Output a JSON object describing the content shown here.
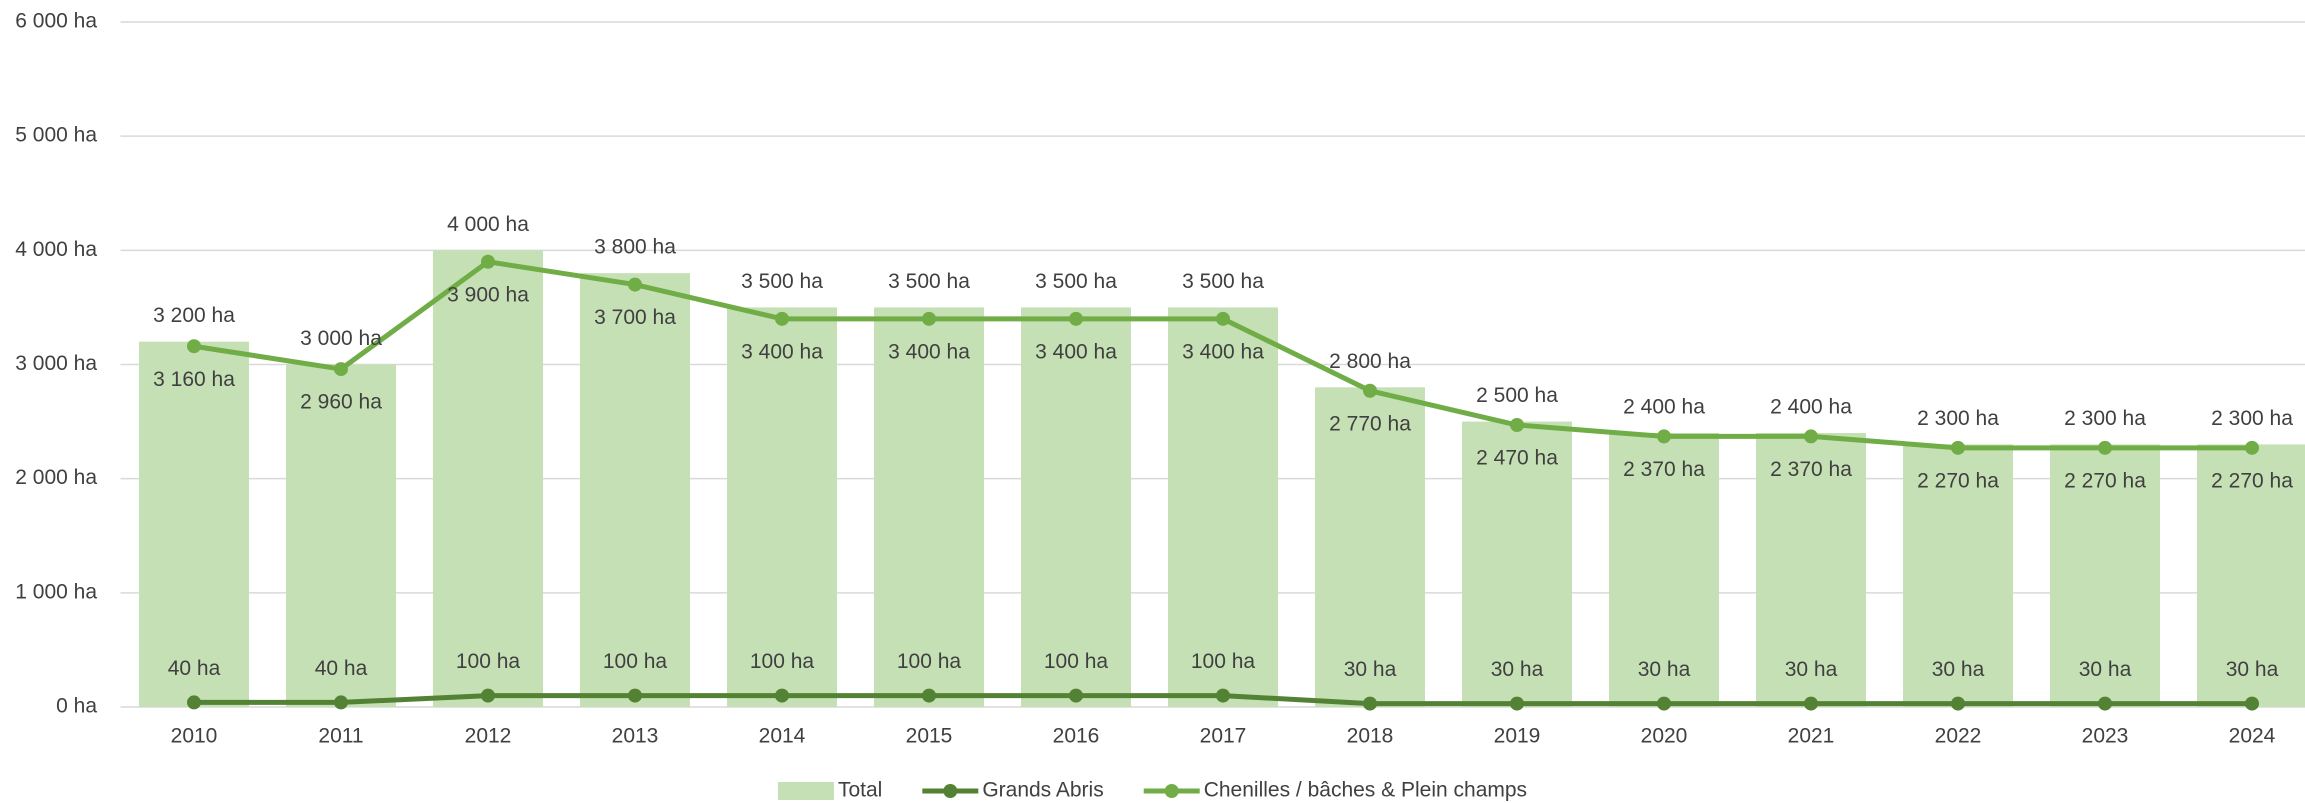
{
  "chart_data": {
    "type": "bar",
    "categories": [
      "2010",
      "2011",
      "2012",
      "2013",
      "2014",
      "2015",
      "2016",
      "2017",
      "2018",
      "2019",
      "2020",
      "2021",
      "2022",
      "2023",
      "2024"
    ],
    "series": [
      {
        "name": "Total",
        "type": "bar",
        "color": "#c5e0b4",
        "values": [
          3200,
          3000,
          4000,
          3800,
          3500,
          3500,
          3500,
          3500,
          2800,
          2500,
          2400,
          2400,
          2300,
          2300,
          2300
        ],
        "value_labels": [
          "3 200 ha",
          "3 000 ha",
          "4 000 ha",
          "3 800 ha",
          "3 500 ha",
          "3 500 ha",
          "3 500 ha",
          "3 500 ha",
          "2 800 ha",
          "2 500 ha",
          "2 400 ha",
          "2 400 ha",
          "2 300 ha",
          "2 300 ha",
          "2 300 ha"
        ]
      },
      {
        "name": "Grands Abris",
        "type": "line",
        "color": "#548235",
        "values": [
          40,
          40,
          100,
          100,
          100,
          100,
          100,
          100,
          30,
          30,
          30,
          30,
          30,
          30,
          30
        ],
        "value_labels": [
          "40 ha",
          "40 ha",
          "100 ha",
          "100 ha",
          "100 ha",
          "100 ha",
          "100 ha",
          "100 ha",
          "30 ha",
          "30 ha",
          "30 ha",
          "30 ha",
          "30 ha",
          "30 ha",
          "30 ha"
        ]
      },
      {
        "name": "Chenilles / bâches & Plein champs",
        "type": "line",
        "color": "#70ad47",
        "values": [
          3160,
          2960,
          3900,
          3700,
          3400,
          3400,
          3400,
          3400,
          2770,
          2470,
          2370,
          2370,
          2270,
          2270,
          2270
        ],
        "value_labels": [
          "3 160 ha",
          "2 960 ha",
          "3 900 ha",
          "3 700 ha",
          "3 400 ha",
          "3 400 ha",
          "3 400 ha",
          "3 400 ha",
          "2 770 ha",
          "2 470 ha",
          "2 370 ha",
          "2 370 ha",
          "2 270 ha",
          "2 270 ha",
          "2 270 ha"
        ]
      }
    ],
    "ylim": [
      0,
      6000
    ],
    "yticks": [
      {
        "value": 0,
        "label": "0 ha"
      },
      {
        "value": 1000,
        "label": "1 000 ha"
      },
      {
        "value": 2000,
        "label": "2 000 ha"
      },
      {
        "value": 3000,
        "label": "3 000 ha"
      },
      {
        "value": 4000,
        "label": "4 000 ha"
      },
      {
        "value": 5000,
        "label": "5 000 ha"
      },
      {
        "value": 6000,
        "label": "6 000 ha"
      }
    ],
    "grid": true,
    "legend": "bottom"
  }
}
